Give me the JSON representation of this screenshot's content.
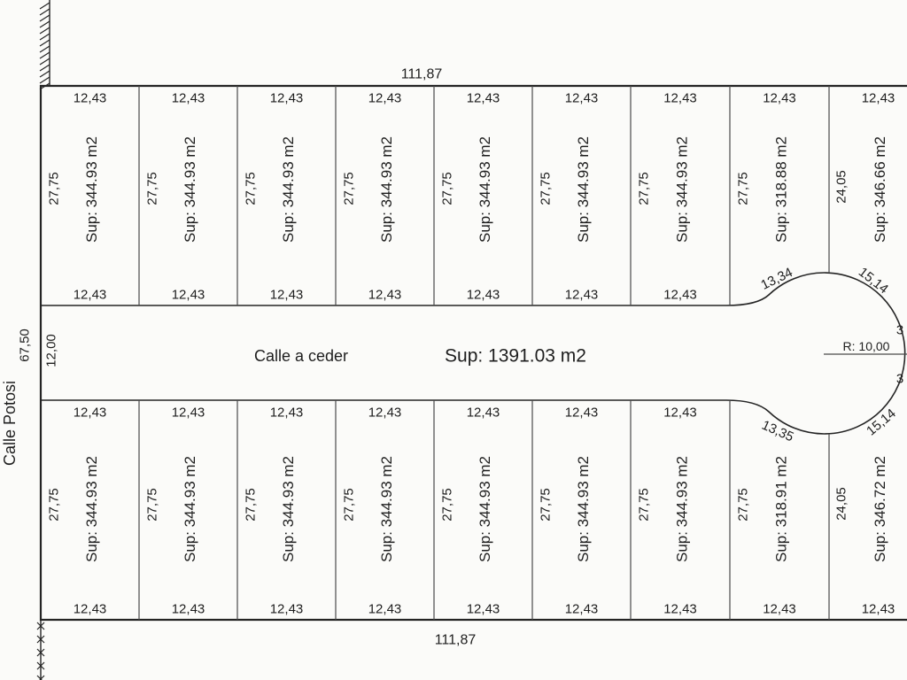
{
  "colors": {
    "background": "#fbfbf9",
    "line": "#242424",
    "line_secondary": "#4a4a4a",
    "text": "#1e1e1e"
  },
  "adjacent_street": {
    "name": "Calle Potosi"
  },
  "outer_dimensions": {
    "top_width": "111,87",
    "bottom_width": "111,87",
    "left_height": "67,50"
  },
  "central_street": {
    "name": "Calle a ceder",
    "area": "Sup: 1391.03 m2",
    "width_dim": "12,00"
  },
  "culdesac": {
    "radius_label": "R: 10,00",
    "clipped_right_dims": [
      "3",
      "3"
    ]
  },
  "top_row_parcels": [
    {
      "outer_dim": "12,43",
      "depth_dim": "27,75",
      "area_label": "Sup: 344.93 m2",
      "street_dim": "12,43"
    },
    {
      "outer_dim": "12,43",
      "depth_dim": "27,75",
      "area_label": "Sup: 344.93 m2",
      "street_dim": "12,43"
    },
    {
      "outer_dim": "12,43",
      "depth_dim": "27,75",
      "area_label": "Sup: 344.93 m2",
      "street_dim": "12,43"
    },
    {
      "outer_dim": "12,43",
      "depth_dim": "27,75",
      "area_label": "Sup: 344.93 m2",
      "street_dim": "12,43"
    },
    {
      "outer_dim": "12,43",
      "depth_dim": "27,75",
      "area_label": "Sup: 344.93 m2",
      "street_dim": "12,43"
    },
    {
      "outer_dim": "12,43",
      "depth_dim": "27,75",
      "area_label": "Sup: 344.93 m2",
      "street_dim": "12,43"
    },
    {
      "outer_dim": "12,43",
      "depth_dim": "27,75",
      "area_label": "Sup: 344.93 m2",
      "street_dim": "12,43"
    },
    {
      "outer_dim": "12,43",
      "depth_dim": "27,75",
      "area_label": "Sup: 318.88 m2",
      "street_dim": "13,34"
    },
    {
      "outer_dim": "12,43",
      "depth_dim": "24,05",
      "area_label": "Sup: 346.66 m2",
      "street_dim": "15,14"
    }
  ],
  "bottom_row_parcels": [
    {
      "outer_dim": "12,43",
      "depth_dim": "27,75",
      "area_label": "Sup: 344.93 m2",
      "street_dim": "12,43"
    },
    {
      "outer_dim": "12,43",
      "depth_dim": "27,75",
      "area_label": "Sup: 344.93 m2",
      "street_dim": "12,43"
    },
    {
      "outer_dim": "12,43",
      "depth_dim": "27,75",
      "area_label": "Sup: 344.93 m2",
      "street_dim": "12,43"
    },
    {
      "outer_dim": "12,43",
      "depth_dim": "27,75",
      "area_label": "Sup: 344.93 m2",
      "street_dim": "12,43"
    },
    {
      "outer_dim": "12,43",
      "depth_dim": "27,75",
      "area_label": "Sup: 344.93 m2",
      "street_dim": "12,43"
    },
    {
      "outer_dim": "12,43",
      "depth_dim": "27,75",
      "area_label": "Sup: 344.93 m2",
      "street_dim": "12,43"
    },
    {
      "outer_dim": "12,43",
      "depth_dim": "27,75",
      "area_label": "Sup: 344.93 m2",
      "street_dim": "12,43"
    },
    {
      "outer_dim": "12,43",
      "depth_dim": "27,75",
      "area_label": "Sup: 318.91 m2",
      "street_dim": "13,35"
    },
    {
      "outer_dim": "12,43",
      "depth_dim": "24,05",
      "area_label": "Sup: 346.72 m2",
      "street_dim": "15,14"
    }
  ]
}
